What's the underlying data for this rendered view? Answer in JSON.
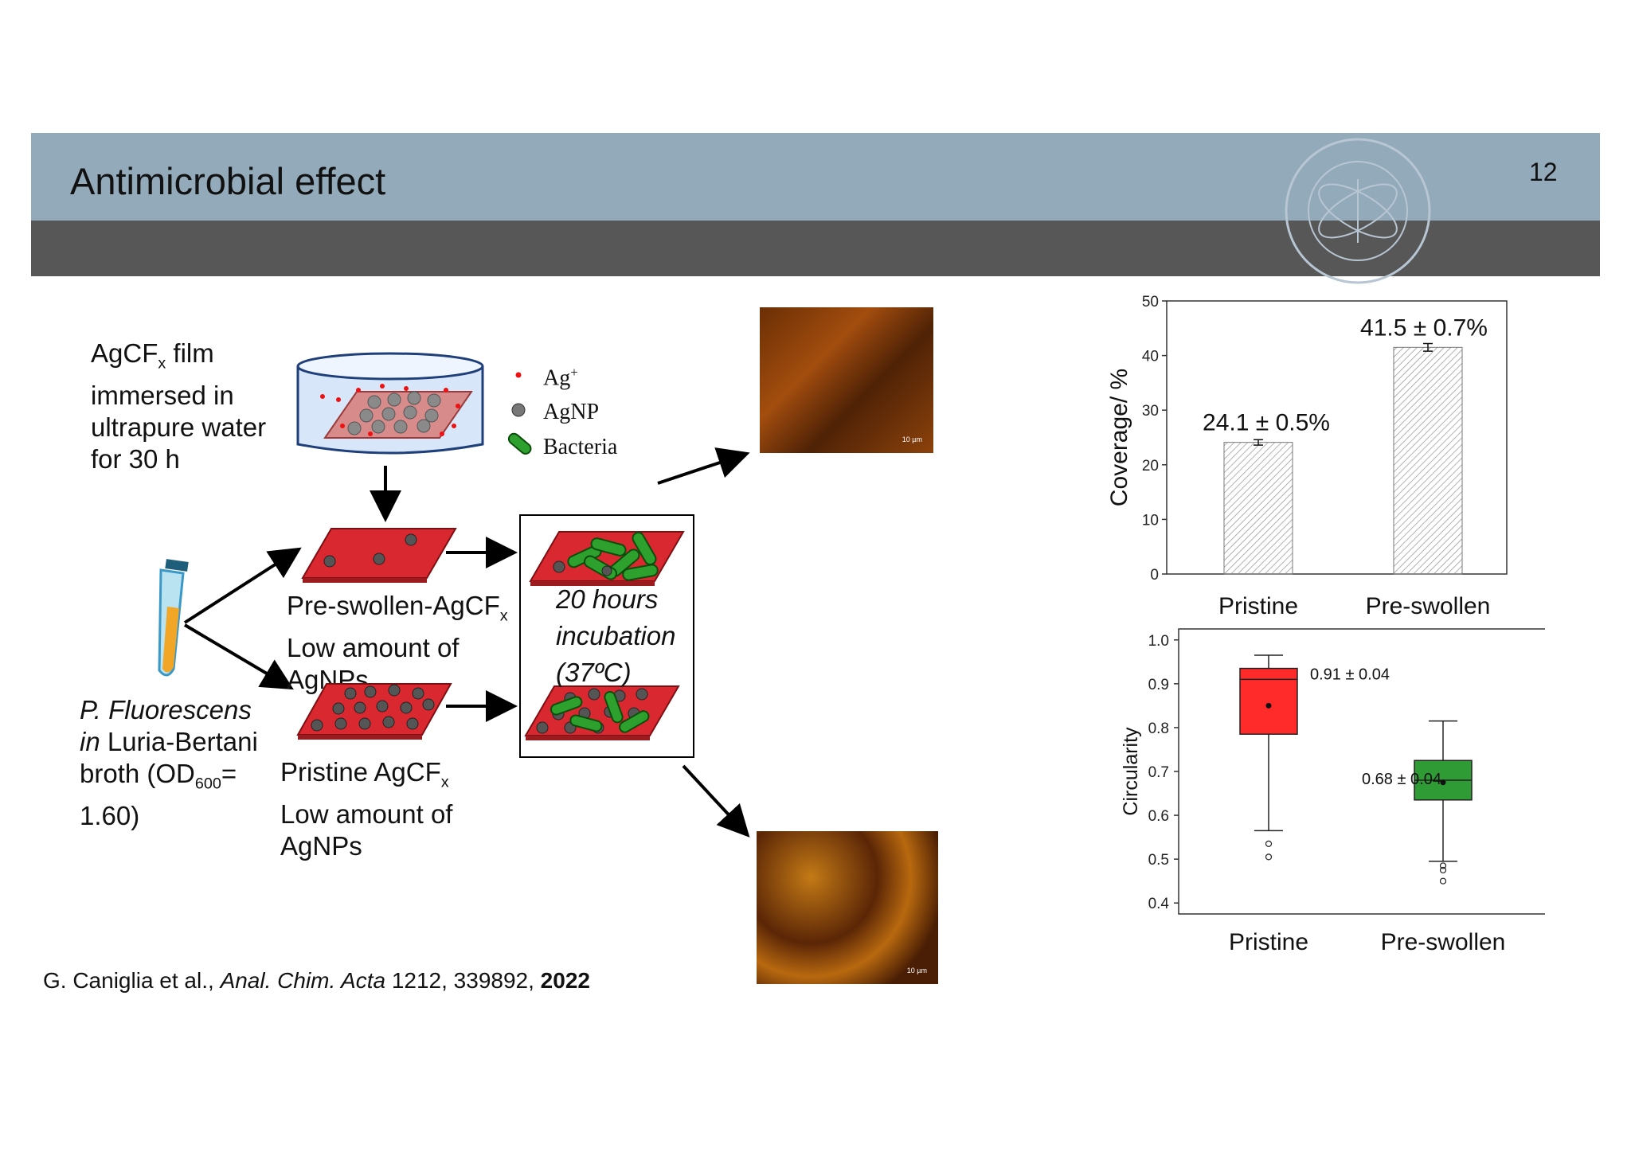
{
  "slide": {
    "title": "Antimicrobial effect",
    "page_number": "12"
  },
  "schematic": {
    "film_label": [
      "AgCF",
      "x",
      " film",
      "immersed in",
      "ultrapure water",
      "for 30 h"
    ],
    "legend": {
      "ag_ion": "Ag",
      "ag_ion_sup": "+",
      "agnp": "AgNP",
      "bacteria": "Bacteria"
    },
    "preswollen_label": [
      "Pre-swollen-AgCF",
      "x",
      "Low amount of",
      "AgNPs"
    ],
    "pristine_label": [
      "Pristine AgCF",
      "x",
      "Low amount of",
      "AgNPs"
    ],
    "culture_label": [
      "P. Fluorescens",
      "in",
      " Luria-Bertani",
      "broth (OD",
      "600",
      "=",
      "1.60)"
    ],
    "incubation": [
      "20 hours",
      "incubation",
      "(37ºC)"
    ],
    "scalebar": "10 µm"
  },
  "citation": {
    "authors": "G. Caniglia et al., ",
    "journal": "Anal. Chim. Acta",
    "volume": " 1212, 339892, ",
    "year": "2022"
  },
  "colors": {
    "header": "#93aabb",
    "header_band": "#575757",
    "film_red": "#d9282f",
    "pristine_box": "#ff2b2b",
    "preswollen_box": "#2e9b35"
  },
  "chart_data": [
    {
      "type": "bar",
      "categories": [
        "Pristine",
        "Pre-swollen"
      ],
      "values": [
        24.1,
        41.5
      ],
      "errors": [
        0.5,
        0.7
      ],
      "data_labels": [
        "24.1 ± 0.5%",
        "41.5 ± 0.7%"
      ],
      "ylabel": "Coverage/ %",
      "ylim": [
        0,
        50
      ],
      "yticks": [
        "0",
        "10",
        "20",
        "30",
        "40",
        "50"
      ],
      "grid": false
    },
    {
      "type": "box",
      "categories": [
        "Pristine",
        "Pre-swollen"
      ],
      "series": [
        {
          "q1": 0.785,
          "median": 0.91,
          "q3": 0.935,
          "mean": 0.85,
          "whisker_low": 0.565,
          "whisker_high": 0.965,
          "outliers": [
            0.535,
            0.505
          ]
        },
        {
          "q1": 0.635,
          "median": 0.68,
          "q3": 0.725,
          "mean": 0.675,
          "whisker_low": 0.495,
          "whisker_high": 0.815,
          "outliers": [
            0.485,
            0.475,
            0.45
          ]
        }
      ],
      "data_labels": [
        "0.91 ± 0.04",
        "0.68 ± 0.04"
      ],
      "ylabel": "Circularity",
      "ylim": [
        0.375,
        1.025
      ],
      "yticks": [
        "0.4",
        "0.5",
        "0.6",
        "0.7",
        "0.8",
        "0.9",
        "1.0"
      ],
      "grid": false
    }
  ]
}
